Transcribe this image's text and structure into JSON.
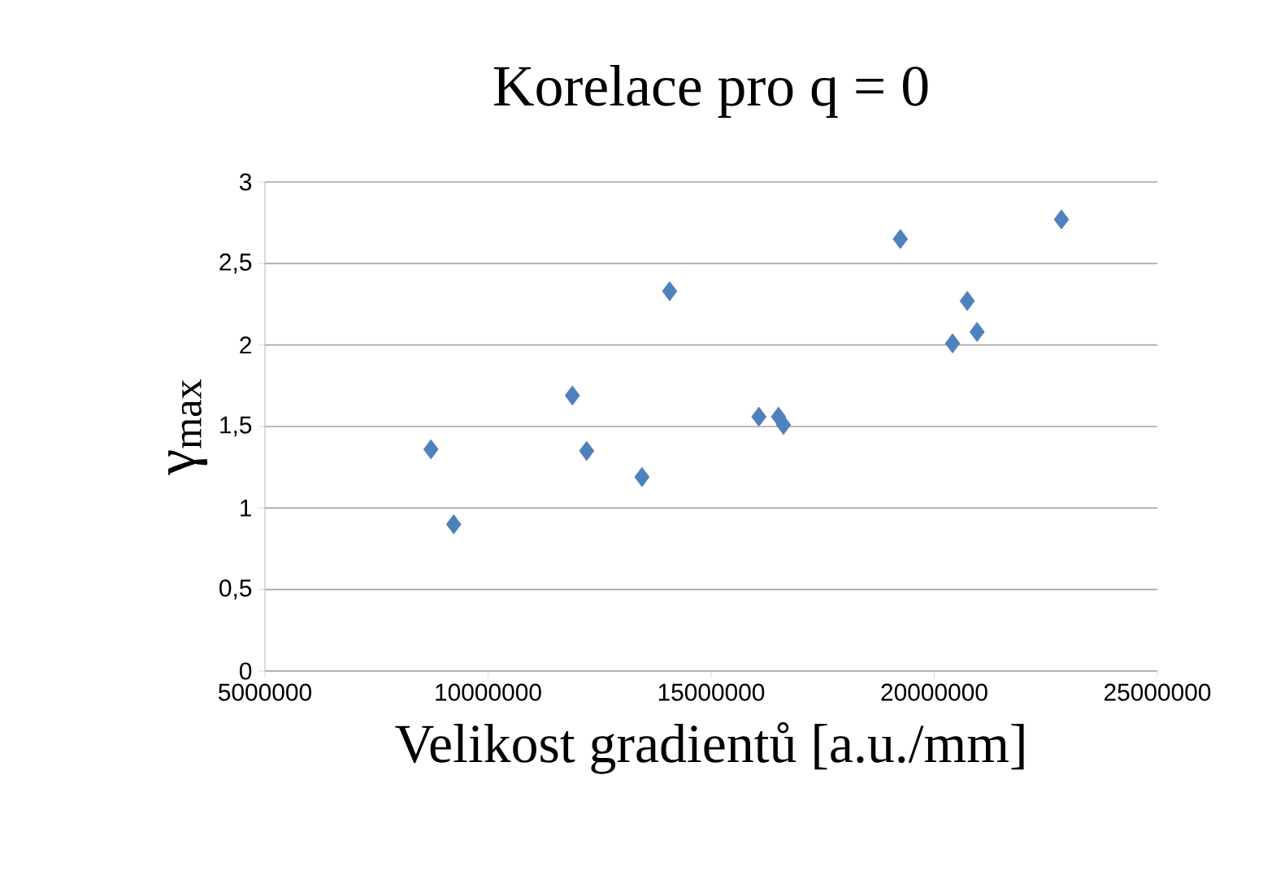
{
  "chart_data": {
    "type": "scatter",
    "title": "Korelace pro q = 0",
    "xlabel": "Velikost gradientů [a.u./mm]",
    "ylabel": "γ$_{max}$",
    "x": [
      8720000,
      9230000,
      11890000,
      12210000,
      13450000,
      14070000,
      16070000,
      16510000,
      16620000,
      19240000,
      20410000,
      20740000,
      20960000,
      22850000
    ],
    "values": [
      1.36,
      0.9,
      1.69,
      1.35,
      1.19,
      2.33,
      1.56,
      1.56,
      1.51,
      2.65,
      2.01,
      2.27,
      2.08,
      2.77
    ],
    "color": "#4f81bd",
    "marker": "diamond",
    "grid": "y",
    "xlim": [
      5000000,
      25000000
    ],
    "ylim": [
      0,
      3
    ],
    "xticks": [
      5000000,
      10000000,
      15000000,
      20000000,
      25000000
    ],
    "yticks": [
      0,
      {
        "value": 0.5,
        "label": "0,5"
      },
      1,
      {
        "value": 1.5,
        "label": "1,5"
      },
      2,
      {
        "value": 2.5,
        "label": "2,5"
      },
      3
    ]
  }
}
